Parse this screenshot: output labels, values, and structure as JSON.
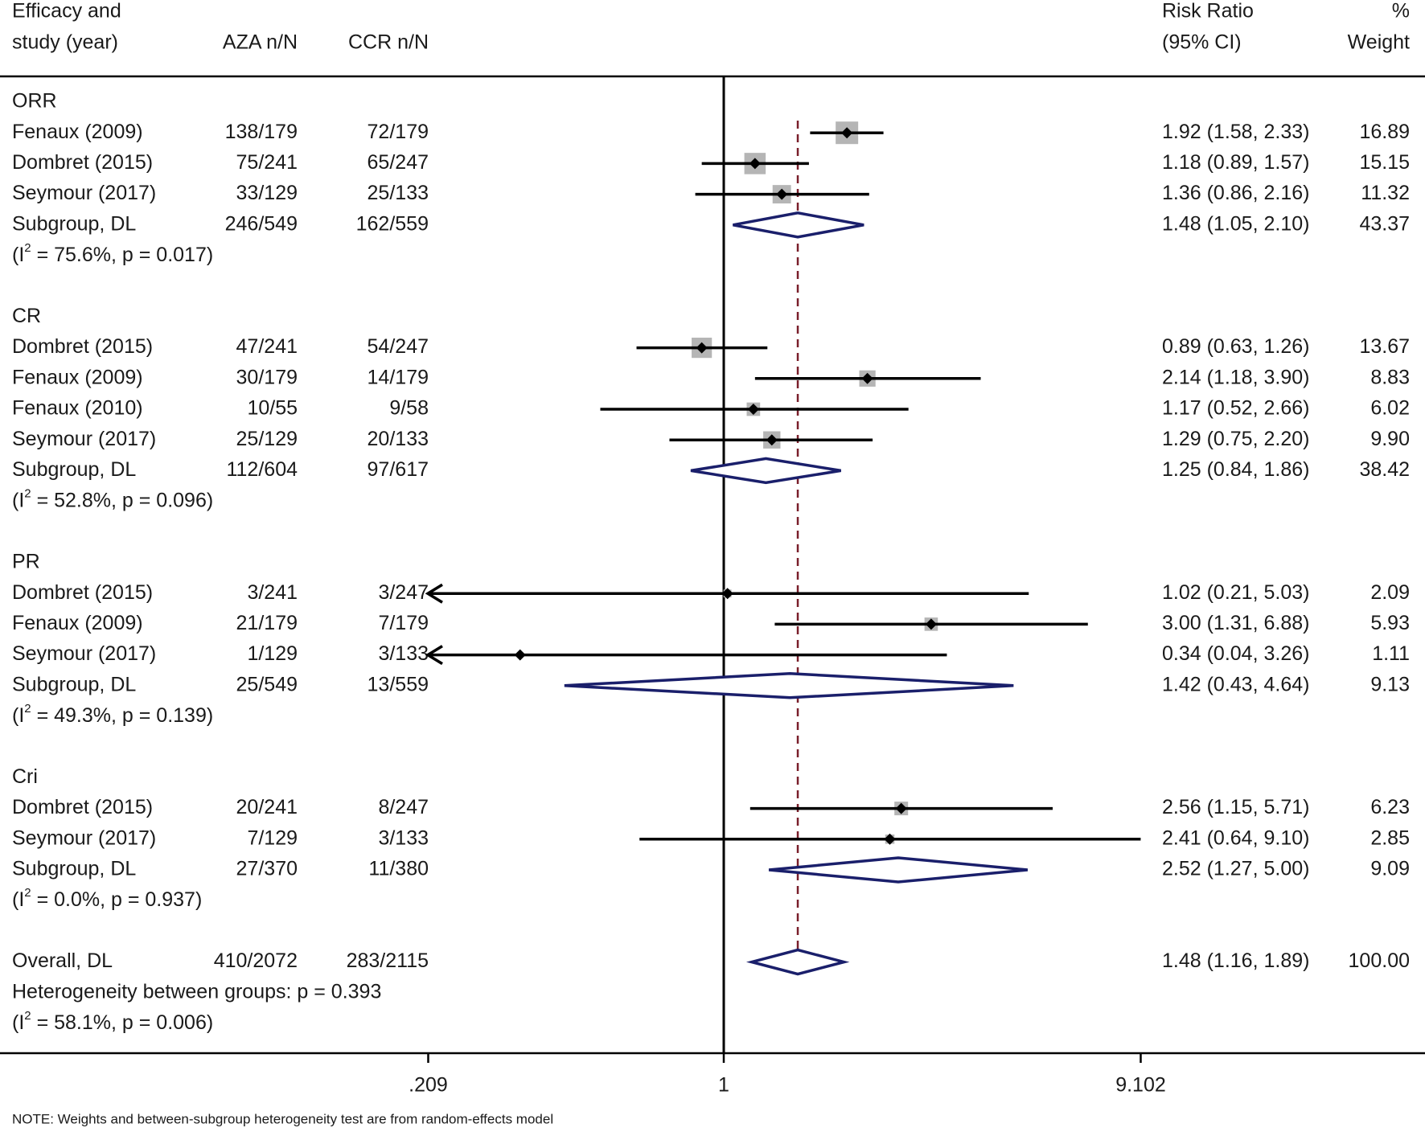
{
  "chart_data": {
    "type": "forest",
    "headers": {
      "study_line1": "Efficacy and",
      "study_line2": "study (year)",
      "aza": "AZA n/N",
      "ccr": "CCR n/N",
      "rr_line1": "Risk Ratio",
      "rr_line2": "(95% CI)",
      "weight_line1": "%",
      "weight_line2": "Weight"
    },
    "x_axis": {
      "scale": "log",
      "range": [
        0.1099,
        11.0
      ],
      "ticks": [
        {
          "value": 0.209,
          "label": ".209"
        },
        {
          "value": 1,
          "label": "1"
        },
        {
          "value": 9.102,
          "label": "9.102"
        }
      ],
      "null_line": 1,
      "overall_effect_line": 1.48
    },
    "groups": [
      {
        "name": "ORR",
        "studies": [
          {
            "label": "Fenaux (2009)",
            "aza": "138/179",
            "ccr": "72/179",
            "rr": 1.92,
            "lo": 1.58,
            "hi": 2.33,
            "weight": 16.89,
            "ci_text": "1.92 (1.58, 2.33)",
            "weight_text": "16.89"
          },
          {
            "label": "Dombret (2015)",
            "aza": "75/241",
            "ccr": "65/247",
            "rr": 1.18,
            "lo": 0.89,
            "hi": 1.57,
            "weight": 15.15,
            "ci_text": "1.18 (0.89, 1.57)",
            "weight_text": "15.15"
          },
          {
            "label": "Seymour (2017)",
            "aza": "33/129",
            "ccr": "25/133",
            "rr": 1.36,
            "lo": 0.86,
            "hi": 2.16,
            "weight": 11.32,
            "ci_text": "1.36 (0.86, 2.16)",
            "weight_text": "11.32"
          }
        ],
        "subgroup": {
          "label": "Subgroup, DL",
          "aza": "246/549",
          "ccr": "162/559",
          "rr": 1.48,
          "lo": 1.05,
          "hi": 2.1,
          "ci_text": "1.48 (1.05, 2.10)",
          "weight_text": "43.37"
        },
        "heterogeneity": {
          "prefix": "(I",
          "sup": "2",
          "suffix": " = 75.6%, p = 0.017)"
        }
      },
      {
        "name": "CR",
        "studies": [
          {
            "label": "Dombret (2015)",
            "aza": "47/241",
            "ccr": "54/247",
            "rr": 0.89,
            "lo": 0.63,
            "hi": 1.26,
            "weight": 13.67,
            "ci_text": "0.89 (0.63, 1.26)",
            "weight_text": "13.67"
          },
          {
            "label": "Fenaux (2009)",
            "aza": "30/179",
            "ccr": "14/179",
            "rr": 2.14,
            "lo": 1.18,
            "hi": 3.9,
            "weight": 8.83,
            "ci_text": "2.14 (1.18, 3.90)",
            "weight_text": "8.83"
          },
          {
            "label": "Fenaux (2010)",
            "aza": "10/55",
            "ccr": "9/58",
            "rr": 1.17,
            "lo": 0.52,
            "hi": 2.66,
            "weight": 6.02,
            "ci_text": "1.17 (0.52, 2.66)",
            "weight_text": "6.02"
          },
          {
            "label": "Seymour (2017)",
            "aza": "25/129",
            "ccr": "20/133",
            "rr": 1.29,
            "lo": 0.75,
            "hi": 2.2,
            "weight": 9.9,
            "ci_text": "1.29 (0.75, 2.20)",
            "weight_text": "9.90"
          }
        ],
        "subgroup": {
          "label": "Subgroup, DL",
          "aza": "112/604",
          "ccr": "97/617",
          "rr": 1.25,
          "lo": 0.84,
          "hi": 1.86,
          "ci_text": "1.25 (0.84, 1.86)",
          "weight_text": "38.42"
        },
        "heterogeneity": {
          "prefix": "(I",
          "sup": "2",
          "suffix": " = 52.8%, p = 0.096)"
        }
      },
      {
        "name": "PR",
        "studies": [
          {
            "label": "Dombret (2015)",
            "aza": "3/241",
            "ccr": "3/247",
            "rr": 1.02,
            "lo": 0.21,
            "hi": 5.03,
            "weight": 2.09,
            "ci_text": "1.02 (0.21, 5.03)",
            "weight_text": "2.09",
            "arrow_left": true
          },
          {
            "label": "Fenaux (2009)",
            "aza": "21/179",
            "ccr": "7/179",
            "rr": 3.0,
            "lo": 1.31,
            "hi": 6.88,
            "weight": 5.93,
            "ci_text": "3.00 (1.31, 6.88)",
            "weight_text": "5.93"
          },
          {
            "label": "Seymour (2017)",
            "aza": "1/129",
            "ccr": "3/133",
            "rr": 0.34,
            "lo": 0.04,
            "hi": 3.26,
            "weight": 1.11,
            "ci_text": "0.34 (0.04, 3.26)",
            "weight_text": "1.11",
            "arrow_left": true
          }
        ],
        "subgroup": {
          "label": "Subgroup, DL",
          "aza": "25/549",
          "ccr": "13/559",
          "rr": 1.42,
          "lo": 0.43,
          "hi": 4.64,
          "ci_text": "1.42 (0.43, 4.64)",
          "weight_text": "9.13"
        },
        "heterogeneity": {
          "prefix": "(I",
          "sup": "2",
          "suffix": " = 49.3%, p = 0.139)"
        }
      },
      {
        "name": "Cri",
        "studies": [
          {
            "label": "Dombret (2015)",
            "aza": "20/241",
            "ccr": "8/247",
            "rr": 2.56,
            "lo": 1.15,
            "hi": 5.71,
            "weight": 6.23,
            "ci_text": "2.56 (1.15, 5.71)",
            "weight_text": "6.23"
          },
          {
            "label": "Seymour (2017)",
            "aza": "7/129",
            "ccr": "3/133",
            "rr": 2.41,
            "lo": 0.64,
            "hi": 9.1,
            "weight": 2.85,
            "ci_text": "2.41 (0.64, 9.10)",
            "weight_text": "2.85"
          }
        ],
        "subgroup": {
          "label": "Subgroup, DL",
          "aza": "27/370",
          "ccr": "11/380",
          "rr": 2.52,
          "lo": 1.27,
          "hi": 5.0,
          "ci_text": "2.52 (1.27, 5.00)",
          "weight_text": "9.09"
        },
        "heterogeneity": {
          "prefix": "(I",
          "sup": "2",
          "suffix": " = 0.0%, p = 0.937)"
        }
      }
    ],
    "overall": {
      "label": "Overall, DL",
      "aza": "410/2072",
      "ccr": "283/2115",
      "rr": 1.48,
      "lo": 1.16,
      "hi": 1.89,
      "ci_text": "1.48 (1.16, 1.89)",
      "weight_text": "100.00",
      "between_groups": "Heterogeneity between groups: p = 0.393",
      "heterogeneity": {
        "prefix": "(I",
        "sup": "2",
        "suffix": " = 58.1%, p = 0.006)"
      }
    },
    "note": "NOTE: Weights and between-subgroup heterogeneity test are from random-effects model",
    "colors": {
      "text": "#1a1a1a",
      "line": "#000000",
      "weight_box": "#b5b5b5",
      "diamond": "#1a1f6b",
      "overall_line": "#7a1f2b"
    }
  }
}
